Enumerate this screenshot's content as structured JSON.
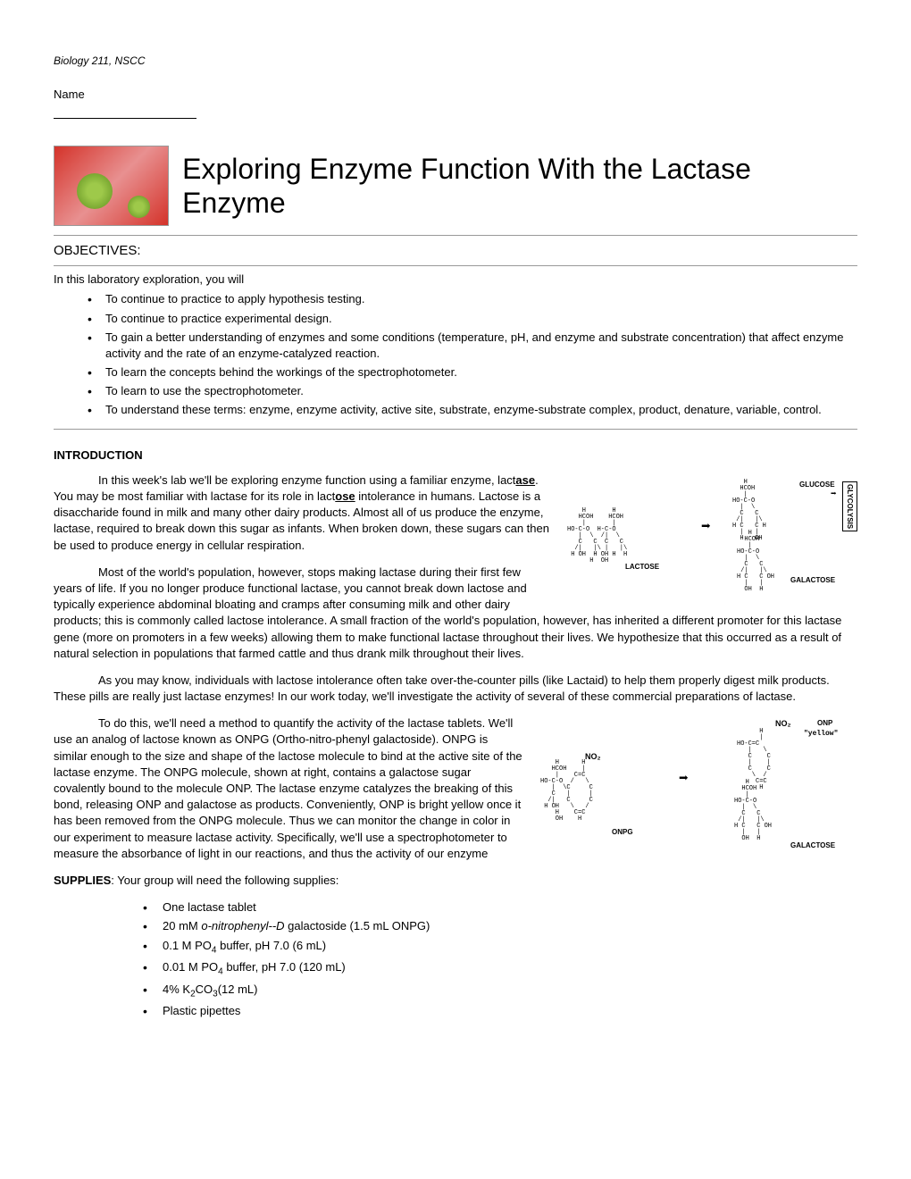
{
  "course_header": "Biology 211, NSCC",
  "name_label": "Name",
  "main_title": "Exploring Enzyme Function With the Lactase Enzyme",
  "objectives_header": "OBJECTIVES:",
  "objectives_intro": "In this laboratory exploration, you will",
  "objectives": [
    "To continue to practice to apply hypothesis testing.",
    "To continue to practice experimental design.",
    "To gain a better understanding of enzymes and some conditions (temperature, pH, and enzyme and substrate concentration) that affect enzyme activity and the rate of an enzyme-catalyzed reaction.",
    "To learn the concepts behind the workings of the spectrophotometer.",
    "To learn to use the spectrophotometer.",
    "To understand these terms:  enzyme, enzyme activity, active site, substrate, enzyme-substrate complex, product, denature, variable, control."
  ],
  "introduction_title": "INTRODUCTION",
  "para1_parts": {
    "p1": "In this week's lab we'll be exploring enzyme function using a familiar enzyme, lact",
    "ase": "ase",
    "p2": ".  You may be most familiar with lactase for its role in lact",
    "ose": "ose",
    "p3": " intolerance in humans.  Lactose is a disaccharide found in milk and many other dairy products.  Almost all of us produce the enzyme, lactase, required to break down this sugar as infants.  When broken down, these sugars can then be used to produce energy in cellular respiration."
  },
  "para2": "Most of the world's population, however, stops making lactase during their first few years of life.  If you no longer produce functional lactase, you cannot break down lactose and typically experience abdominal bloating and cramps after consuming milk and other dairy products; this is commonly called lactose intolerance.   A small fraction of the world's population, however, has inherited a different promoter for this lactase gene (more on promoters in a few weeks) allowing them to make functional lactase throughout their lives.  We hypothesize that this occurred as a result of natural selection in populations that farmed cattle and thus drank milk throughout their lives.",
  "para3": "As you may know, individuals with lactose intolerance often take over-the-counter pills (like Lactaid) to help them properly digest milk products.  These pills are really just lactase enzymes!  In our work today, we'll investigate the activity of several of these commercial preparations of lactase.",
  "para4": "To do this, we'll need a method to quantify the activity of the lactase tablets.  We'll use an analog of lactose known as ONPG (Ortho-nitro-phenyl galactoside).  ONPG is similar enough to the size and shape of the lactose molecule to bind at the active site of the lactase enzyme.  The ONPG molecule, shown at right, contains a galactose sugar covalently bound to the molecule ONP.  The lactase enzyme catalyzes the breaking of this bond, releasing ONP and galactose as products.  Conveniently, ONP is bright yellow once it has been removed from the ONPG molecule.  Thus we can monitor the change in color in our experiment to measure lactase activity.  Specifically, we'll use a spectrophotometer to measure the absorbance of light in our reactions, and thus the activity of our enzyme",
  "supplies_title": "SUPPLIES",
  "supplies_intro": ":  Your group will need the following supplies:",
  "supplies": [
    {
      "text": "One lactase tablet"
    },
    {
      "html": "20 mM  <span class=\"italic\">o-nitrophenyl--D</span> galactoside  (1.5 mL ONPG)"
    },
    {
      "html": "0.1 M PO<span class=\"sub\">4</span> buffer, pH 7.0  (6 mL)"
    },
    {
      "html": "0.01 M PO<span class=\"sub\">4</span> buffer, pH 7.0   (120 mL)"
    },
    {
      "html": "4% K<span class=\"sub\">2</span>CO<span class=\"sub\">3</span>(12 mL)"
    },
    {
      "text": "Plastic pipettes"
    }
  ],
  "diagram1": {
    "glucose_label": "GLUCOSE",
    "lactose_label": "LACTOSE",
    "galactose_label": "GALACTOSE",
    "glycolysis_label": "GLYCOLYSIS"
  },
  "diagram2": {
    "onp_label": "ONP",
    "yellow_label": "\"yellow\"",
    "onpg_label": "ONPG",
    "galactose_label": "GALACTOSE",
    "no2_1": "NO₂",
    "no2_2": "NO₂"
  }
}
